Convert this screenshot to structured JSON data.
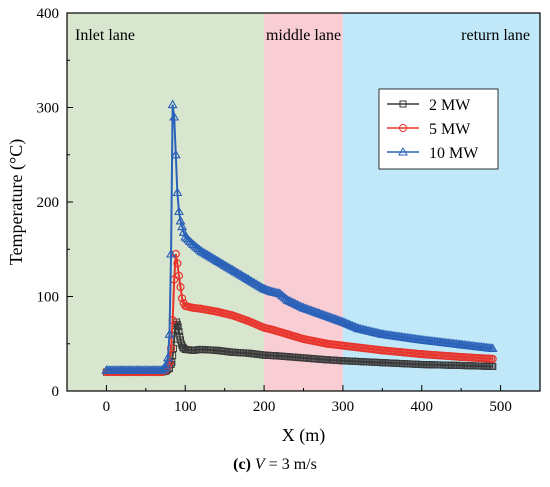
{
  "chart_data": {
    "type": "line",
    "title": "",
    "xlabel": "X (m)",
    "ylabel": "Temperature (°C)",
    "xlim": [
      -50,
      550
    ],
    "ylim": [
      0,
      400
    ],
    "xticks": [
      0,
      100,
      200,
      300,
      400,
      500
    ],
    "yticks": [
      0,
      100,
      200,
      300,
      400
    ],
    "legend_position": "top-right",
    "regions": [
      {
        "label": "Inlet lane",
        "x_start": -50,
        "x_end": 200,
        "color": "#d9e6cf"
      },
      {
        "label": "middle lane",
        "x_start": 200,
        "x_end": 300,
        "color": "#f8cdd3"
      },
      {
        "label": "return lane",
        "x_start": 300,
        "x_end": 550,
        "color": "#c0e8f8"
      }
    ],
    "series": [
      {
        "name": "2 MW",
        "color": "#3a3a3a",
        "marker": "square",
        "x": [
          0,
          20,
          40,
          60,
          70,
          75,
          80,
          83,
          85,
          87,
          89,
          91,
          93,
          95,
          97,
          100,
          110,
          120,
          140,
          160,
          180,
          200,
          220,
          250,
          280,
          300,
          350,
          400,
          450,
          490
        ],
        "y": [
          20,
          20,
          20,
          20,
          20,
          21,
          24,
          30,
          45,
          65,
          73,
          68,
          58,
          50,
          46,
          44,
          43,
          44,
          43,
          41,
          40,
          38,
          37,
          35,
          33,
          32,
          30,
          28,
          27,
          26
        ]
      },
      {
        "name": "5 MW",
        "color": "#e8352d",
        "marker": "circle",
        "x": [
          0,
          20,
          40,
          60,
          70,
          75,
          80,
          82,
          84,
          86,
          88,
          90,
          92,
          94,
          96,
          98,
          100,
          110,
          120,
          140,
          160,
          180,
          200,
          210,
          230,
          250,
          280,
          300,
          350,
          400,
          450,
          490
        ],
        "y": [
          20,
          20,
          20,
          20,
          20,
          22,
          30,
          45,
          75,
          118,
          145,
          135,
          122,
          110,
          98,
          93,
          90,
          88,
          87,
          84,
          80,
          74,
          67,
          65,
          60,
          55,
          50,
          48,
          43,
          39,
          36,
          34
        ]
      },
      {
        "name": "10 MW",
        "color": "#2b62b9",
        "marker": "triangle",
        "x": [
          0,
          20,
          40,
          60,
          70,
          75,
          78,
          80,
          82,
          84,
          86,
          88,
          90,
          92,
          94,
          96,
          98,
          100,
          110,
          120,
          140,
          160,
          180,
          200,
          210,
          220,
          230,
          250,
          270,
          290,
          300,
          320,
          350,
          400,
          450,
          490
        ],
        "y": [
          22,
          22,
          22,
          22,
          22,
          25,
          35,
          60,
          145,
          303,
          290,
          250,
          210,
          190,
          180,
          174,
          168,
          163,
          155,
          148,
          138,
          128,
          118,
          108,
          105,
          103,
          96,
          88,
          82,
          76,
          73,
          66,
          60,
          54,
          49,
          45
        ]
      }
    ]
  },
  "caption": {
    "letter": "(c)",
    "variable": "V",
    "rest": " = 3 m/s"
  }
}
